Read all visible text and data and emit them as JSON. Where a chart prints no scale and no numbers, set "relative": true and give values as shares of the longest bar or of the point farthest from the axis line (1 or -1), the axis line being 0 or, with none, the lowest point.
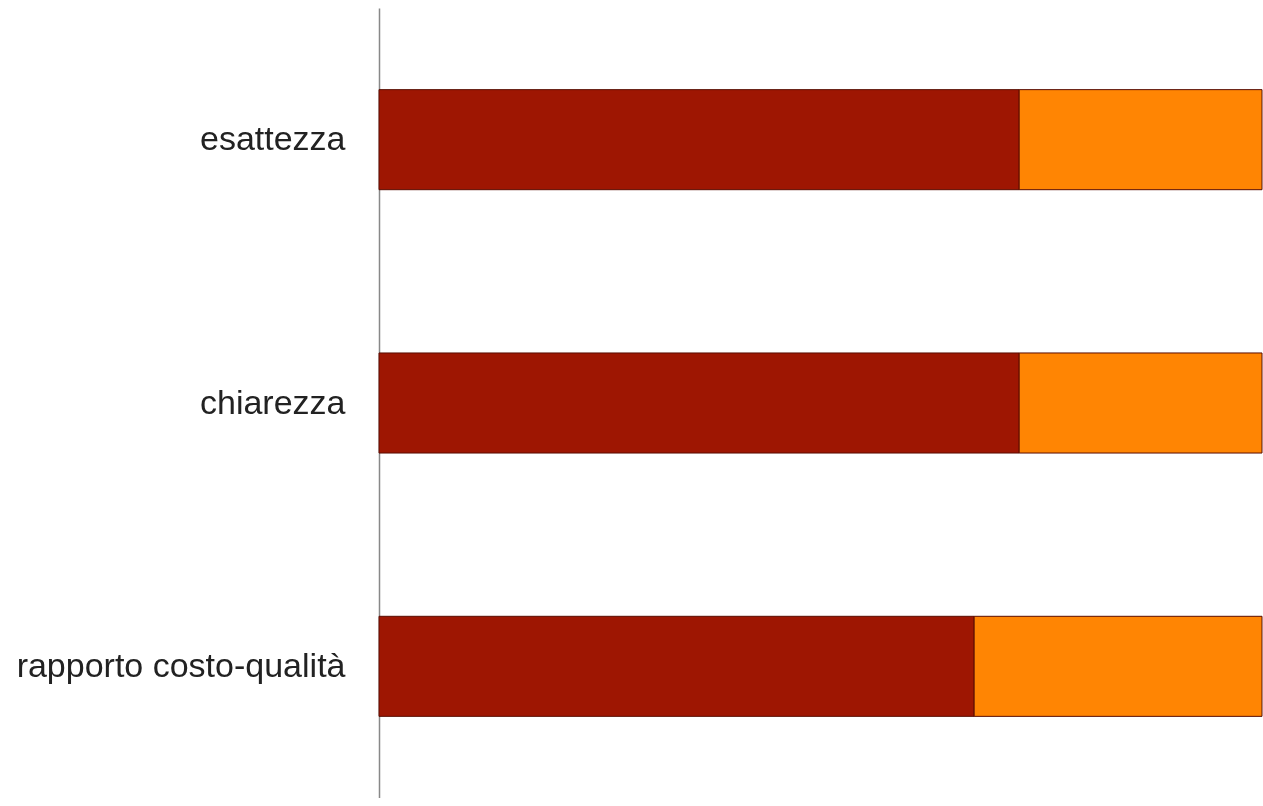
{
  "chart_data": {
    "type": "bar",
    "orientation": "horizontal",
    "stacked": true,
    "relative": true,
    "categories": [
      "esattezza",
      "chiarezza",
      "rapporto costo-qualità"
    ],
    "series": [
      {
        "color": "#9e1602",
        "values": [
          0.725,
          0.725,
          0.674
        ]
      },
      {
        "color": "#ff8503",
        "values": [
          0.275,
          0.275,
          0.326
        ]
      }
    ]
  }
}
